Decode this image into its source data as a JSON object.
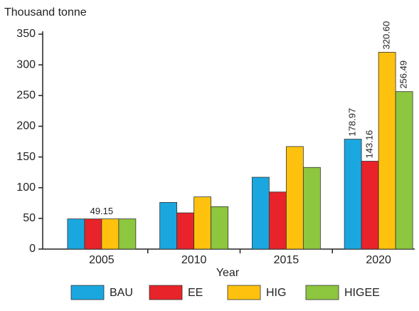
{
  "chart_data": {
    "type": "bar",
    "title": "Thousand tonne",
    "x_label": "Year",
    "categories": [
      "2005",
      "2010",
      "2015",
      "2020"
    ],
    "series": [
      {
        "name": "BAU",
        "color": "#1aa7e0",
        "values": [
          49.15,
          76,
          117,
          178.97
        ],
        "value_labels": [
          "49.15",
          null,
          null,
          "178.97"
        ]
      },
      {
        "name": "EE",
        "color": "#e8232a",
        "values": [
          49.15,
          59,
          93,
          143.16
        ],
        "value_labels": [
          null,
          null,
          null,
          "143.16"
        ]
      },
      {
        "name": "HIG",
        "color": "#fec20e",
        "values": [
          49.15,
          85,
          167,
          320.6
        ],
        "value_labels": [
          null,
          null,
          null,
          "320.60"
        ]
      },
      {
        "name": "HIGEE",
        "color": "#8dc63f",
        "values": [
          49.15,
          69,
          133,
          256.49
        ],
        "value_labels": [
          null,
          null,
          null,
          "256.49"
        ]
      }
    ],
    "ylim": [
      0,
      350
    ],
    "yticks": [
      0,
      50,
      100,
      150,
      200,
      250,
      300,
      350
    ],
    "grid": false,
    "legend": "bottom"
  }
}
